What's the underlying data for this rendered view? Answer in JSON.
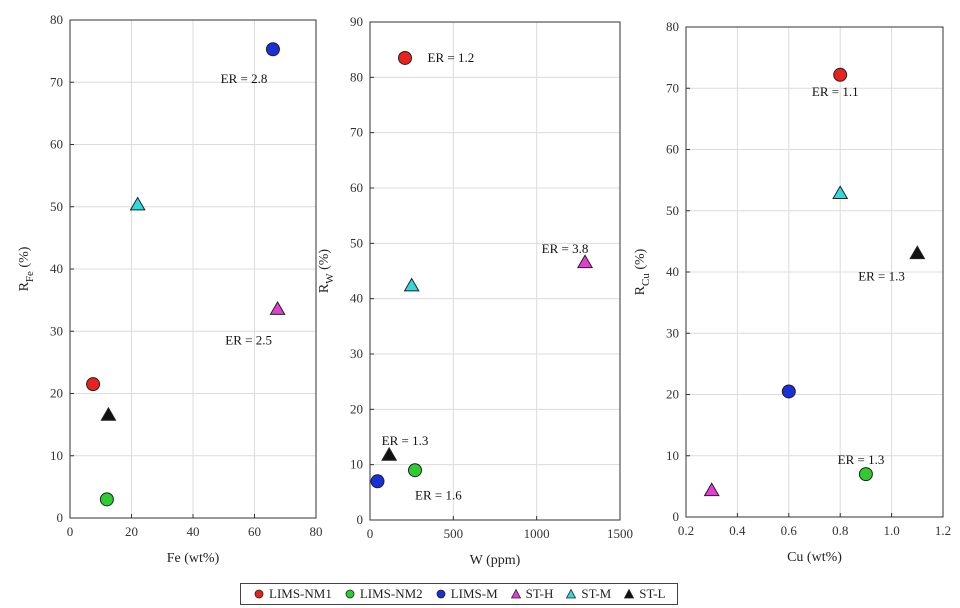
{
  "chart_data": [
    {
      "type": "scatter",
      "xlabel": "Fe (wt%)",
      "ylabel_main": "R",
      "ylabel_sub": "Fe",
      "ylabel_unit": " (%)",
      "xlim": [
        0,
        80
      ],
      "ylim": [
        0,
        80
      ],
      "xticks": [
        0,
        20,
        40,
        60,
        80
      ],
      "yticks": [
        0,
        10,
        20,
        30,
        40,
        50,
        60,
        70,
        80
      ],
      "grid": true,
      "points": [
        {
          "series": "LIMS-NM1",
          "x": 7.5,
          "y": 21.5
        },
        {
          "series": "LIMS-NM2",
          "x": 12,
          "y": 3
        },
        {
          "series": "LIMS-M",
          "x": 66,
          "y": 75.3
        },
        {
          "series": "ST-H",
          "x": 67.5,
          "y": 33.5
        },
        {
          "series": "ST-M",
          "x": 22,
          "y": 50.3
        },
        {
          "series": "ST-L",
          "x": 12.5,
          "y": 16.5
        }
      ],
      "annotations": [
        {
          "text": "ER = 2.8",
          "x": 49,
          "y": 70.5
        },
        {
          "text": "ER = 2.5",
          "x": 50.5,
          "y": 28.5
        }
      ]
    },
    {
      "type": "scatter",
      "xlabel": "W (ppm)",
      "ylabel_main": "R",
      "ylabel_sub": "W",
      "ylabel_unit": " (%)",
      "xlim": [
        0,
        1500
      ],
      "ylim": [
        0,
        90
      ],
      "xticks": [
        0,
        500,
        1000,
        1500
      ],
      "yticks": [
        0,
        10,
        20,
        30,
        40,
        50,
        60,
        70,
        80,
        90
      ],
      "grid": true,
      "points": [
        {
          "series": "LIMS-NM1",
          "x": 210,
          "y": 83.5
        },
        {
          "series": "LIMS-NM2",
          "x": 270,
          "y": 9
        },
        {
          "series": "LIMS-M",
          "x": 45,
          "y": 7
        },
        {
          "series": "ST-H",
          "x": 1290,
          "y": 46.5
        },
        {
          "series": "ST-M",
          "x": 250,
          "y": 42.3
        },
        {
          "series": "ST-L",
          "x": 115,
          "y": 11.7
        }
      ],
      "annotations": [
        {
          "text": "ER = 1.2",
          "x": 345,
          "y": 83.5
        },
        {
          "text": "ER = 3.8",
          "x": 1030,
          "y": 49
        },
        {
          "text": "ER = 1.3",
          "x": 70,
          "y": 14.3
        },
        {
          "text": "ER = 1.6",
          "x": 270,
          "y": 4.4
        }
      ]
    },
    {
      "type": "scatter",
      "xlabel": "Cu (wt%)",
      "ylabel_main": "R",
      "ylabel_sub": "Cu",
      "ylabel_unit": " (%)",
      "xlim": [
        0.2,
        1.2
      ],
      "ylim": [
        0,
        80
      ],
      "xticks": [
        0.2,
        0.4,
        0.6,
        0.8,
        1.0,
        1.2
      ],
      "yticks": [
        0,
        10,
        20,
        30,
        40,
        50,
        60,
        70,
        80
      ],
      "grid": true,
      "points": [
        {
          "series": "LIMS-NM1",
          "x": 0.8,
          "y": 72.2
        },
        {
          "series": "LIMS-NM2",
          "x": 0.9,
          "y": 7
        },
        {
          "series": "LIMS-M",
          "x": 0.6,
          "y": 20.5
        },
        {
          "series": "ST-H",
          "x": 0.3,
          "y": 4.3
        },
        {
          "series": "ST-M",
          "x": 0.8,
          "y": 52.8
        },
        {
          "series": "ST-L",
          "x": 1.1,
          "y": 43
        }
      ],
      "annotations": [
        {
          "text": "ER = 1.1",
          "x": 0.69,
          "y": 69.4
        },
        {
          "text": "ER = 1.3",
          "x": 0.87,
          "y": 39.3
        },
        {
          "text": "ER = 1.3",
          "x": 0.79,
          "y": 9.3
        }
      ]
    }
  ],
  "legend": {
    "placement": "bottom-center",
    "items": [
      {
        "name": "LIMS-NM1",
        "marker": "circle",
        "color": "#e8221c"
      },
      {
        "name": "LIMS-NM2",
        "marker": "circle",
        "color": "#2ecc30"
      },
      {
        "name": "LIMS-M",
        "marker": "circle",
        "color": "#1a2fd6"
      },
      {
        "name": "ST-H",
        "marker": "triangle",
        "color": "#e040d0"
      },
      {
        "name": "ST-M",
        "marker": "triangle",
        "color": "#2fd9e0"
      },
      {
        "name": "ST-L",
        "marker": "triangle",
        "color": "#111111"
      }
    ]
  }
}
